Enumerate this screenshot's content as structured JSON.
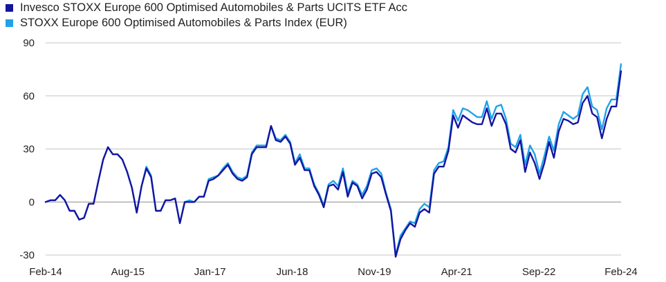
{
  "chart_data": {
    "type": "line",
    "title": "",
    "xlabel": "",
    "ylabel": "",
    "ylim": [
      -30,
      90
    ],
    "yticks": [
      -30,
      0,
      30,
      60,
      90
    ],
    "xticks": [
      "Feb-14",
      "Aug-15",
      "Jan-17",
      "Jun-18",
      "Nov-19",
      "Apr-21",
      "Sep-22",
      "Feb-24"
    ],
    "grid": "horizontal",
    "legend_position": "top-left",
    "x_start": "2014-02",
    "x_end": "2024-02",
    "series": [
      {
        "name": "Invesco STOXX Europe 600 Optimised Automobiles & Parts UCITS ETF Acc",
        "color": "#1414a0",
        "values": [
          0,
          1,
          1,
          4,
          1,
          -5,
          -5,
          -10,
          -9,
          -1,
          -1,
          12,
          24,
          31,
          27,
          27,
          24,
          17,
          8,
          -6,
          9,
          19,
          14,
          -5,
          -5,
          1,
          1,
          2,
          -12,
          0,
          0,
          0,
          3,
          3,
          12,
          13,
          15,
          18,
          21,
          16,
          13,
          12,
          14,
          27,
          31,
          31,
          31,
          43,
          35,
          34,
          37,
          33,
          21,
          25,
          18,
          18,
          9,
          4,
          -3,
          9,
          10,
          7,
          17,
          3,
          11,
          9,
          2,
          7,
          16,
          17,
          14,
          4,
          -5,
          -31,
          -21,
          -16,
          -12,
          -14,
          -6,
          -4,
          -6,
          16,
          20,
          20,
          29,
          49,
          42,
          49,
          47,
          45,
          44,
          44,
          53,
          43,
          50,
          50,
          44,
          30,
          28,
          35,
          17,
          28,
          22,
          13,
          22,
          34,
          25,
          40,
          47,
          46,
          44,
          45,
          56,
          60,
          50,
          48,
          36,
          47,
          54,
          54,
          74
        ]
      },
      {
        "name": "STOXX Europe 600 Optimised Automobiles & Parts Index (EUR)",
        "color": "#1fa2e8",
        "values": [
          0,
          1,
          1,
          4,
          1,
          -5,
          -5,
          -10,
          -9,
          -1,
          -1,
          12,
          24,
          31,
          27,
          27,
          24,
          17,
          8,
          -6,
          9,
          20,
          15,
          -5,
          -5,
          1,
          1,
          2,
          -12,
          0,
          1,
          0,
          3,
          3,
          13,
          14,
          15,
          19,
          22,
          17,
          14,
          13,
          15,
          28,
          32,
          32,
          32,
          43,
          36,
          35,
          38,
          34,
          22,
          27,
          19,
          19,
          10,
          5,
          -2,
          10,
          12,
          9,
          19,
          5,
          12,
          10,
          4,
          9,
          18,
          19,
          16,
          5,
          -4,
          -30,
          -19,
          -15,
          -11,
          -12,
          -4,
          -1,
          -3,
          18,
          22,
          23,
          31,
          52,
          46,
          53,
          52,
          50,
          48,
          48,
          57,
          47,
          54,
          55,
          47,
          33,
          31,
          38,
          21,
          32,
          27,
          16,
          26,
          37,
          29,
          44,
          51,
          49,
          47,
          49,
          61,
          65,
          54,
          52,
          41,
          53,
          58,
          58,
          78
        ]
      }
    ]
  }
}
